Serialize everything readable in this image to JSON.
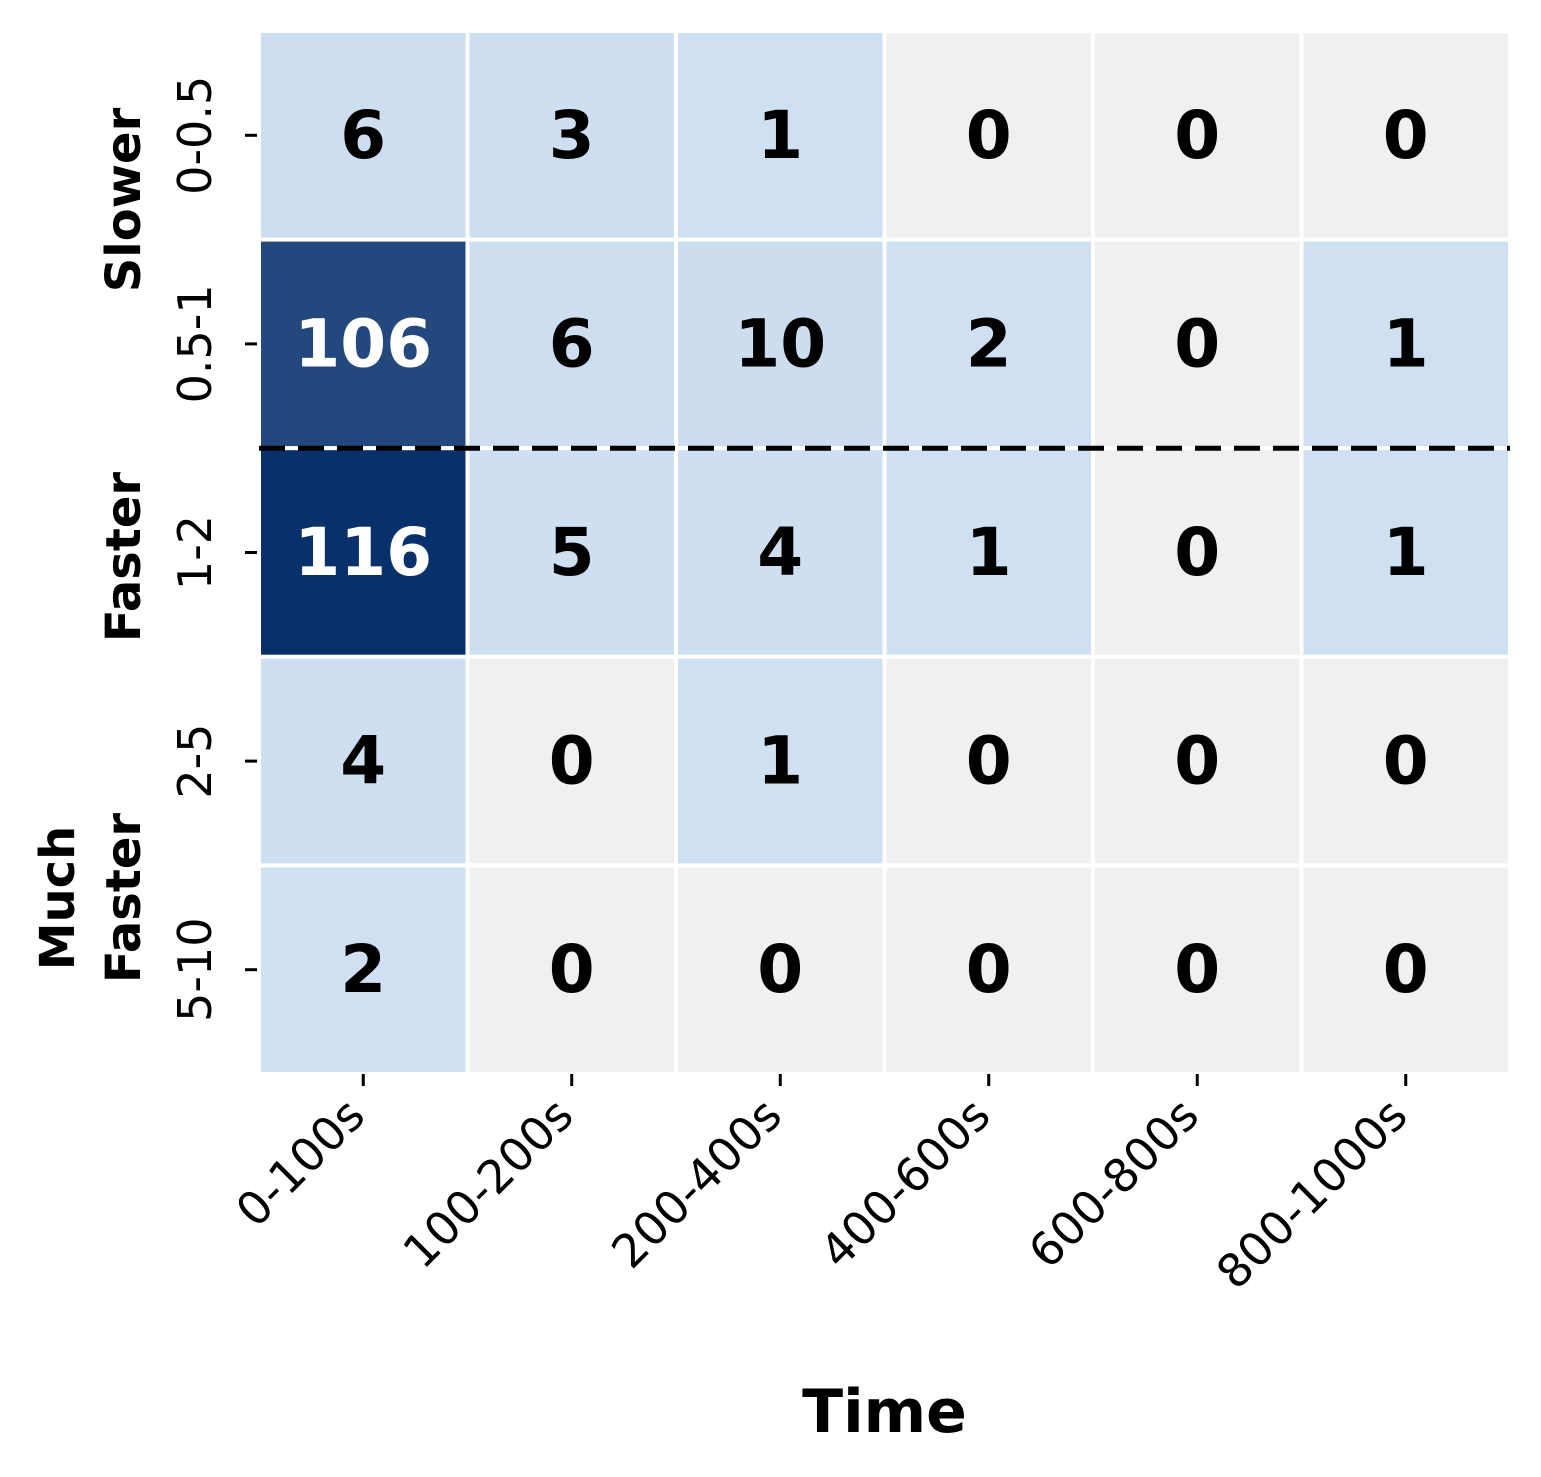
{
  "chart_data": {
    "type": "heatmap",
    "title": "",
    "xlabel": "Time",
    "ylabel": "",
    "x_categories": [
      "0-100s",
      "100-200s",
      "200-400s",
      "400-600s",
      "600-800s",
      "800-1000s"
    ],
    "y_categories": [
      "0-0.5",
      "0.5-1",
      "1-2",
      "2-5",
      "5-10"
    ],
    "values": [
      [
        6,
        3,
        1,
        0,
        0,
        0
      ],
      [
        106,
        6,
        10,
        2,
        0,
        1
      ],
      [
        116,
        5,
        4,
        1,
        0,
        1
      ],
      [
        4,
        0,
        1,
        0,
        0,
        0
      ],
      [
        2,
        0,
        0,
        0,
        0,
        0
      ]
    ],
    "y_groups": [
      {
        "label": "Slower",
        "rows": [
          0,
          1
        ]
      },
      {
        "label": "Faster",
        "rows": [
          2
        ]
      },
      {
        "label": "Much Faster",
        "rows": [
          3,
          4
        ]
      }
    ],
    "separator_after_row": 1,
    "colors": {
      "zero": "#f0f0f0",
      "low": "#cfe0f2",
      "high": "#08306b",
      "text_dark": "#000000",
      "text_light": "#ffffff",
      "separator": "#000000"
    },
    "grid": false,
    "colorbar": false
  }
}
